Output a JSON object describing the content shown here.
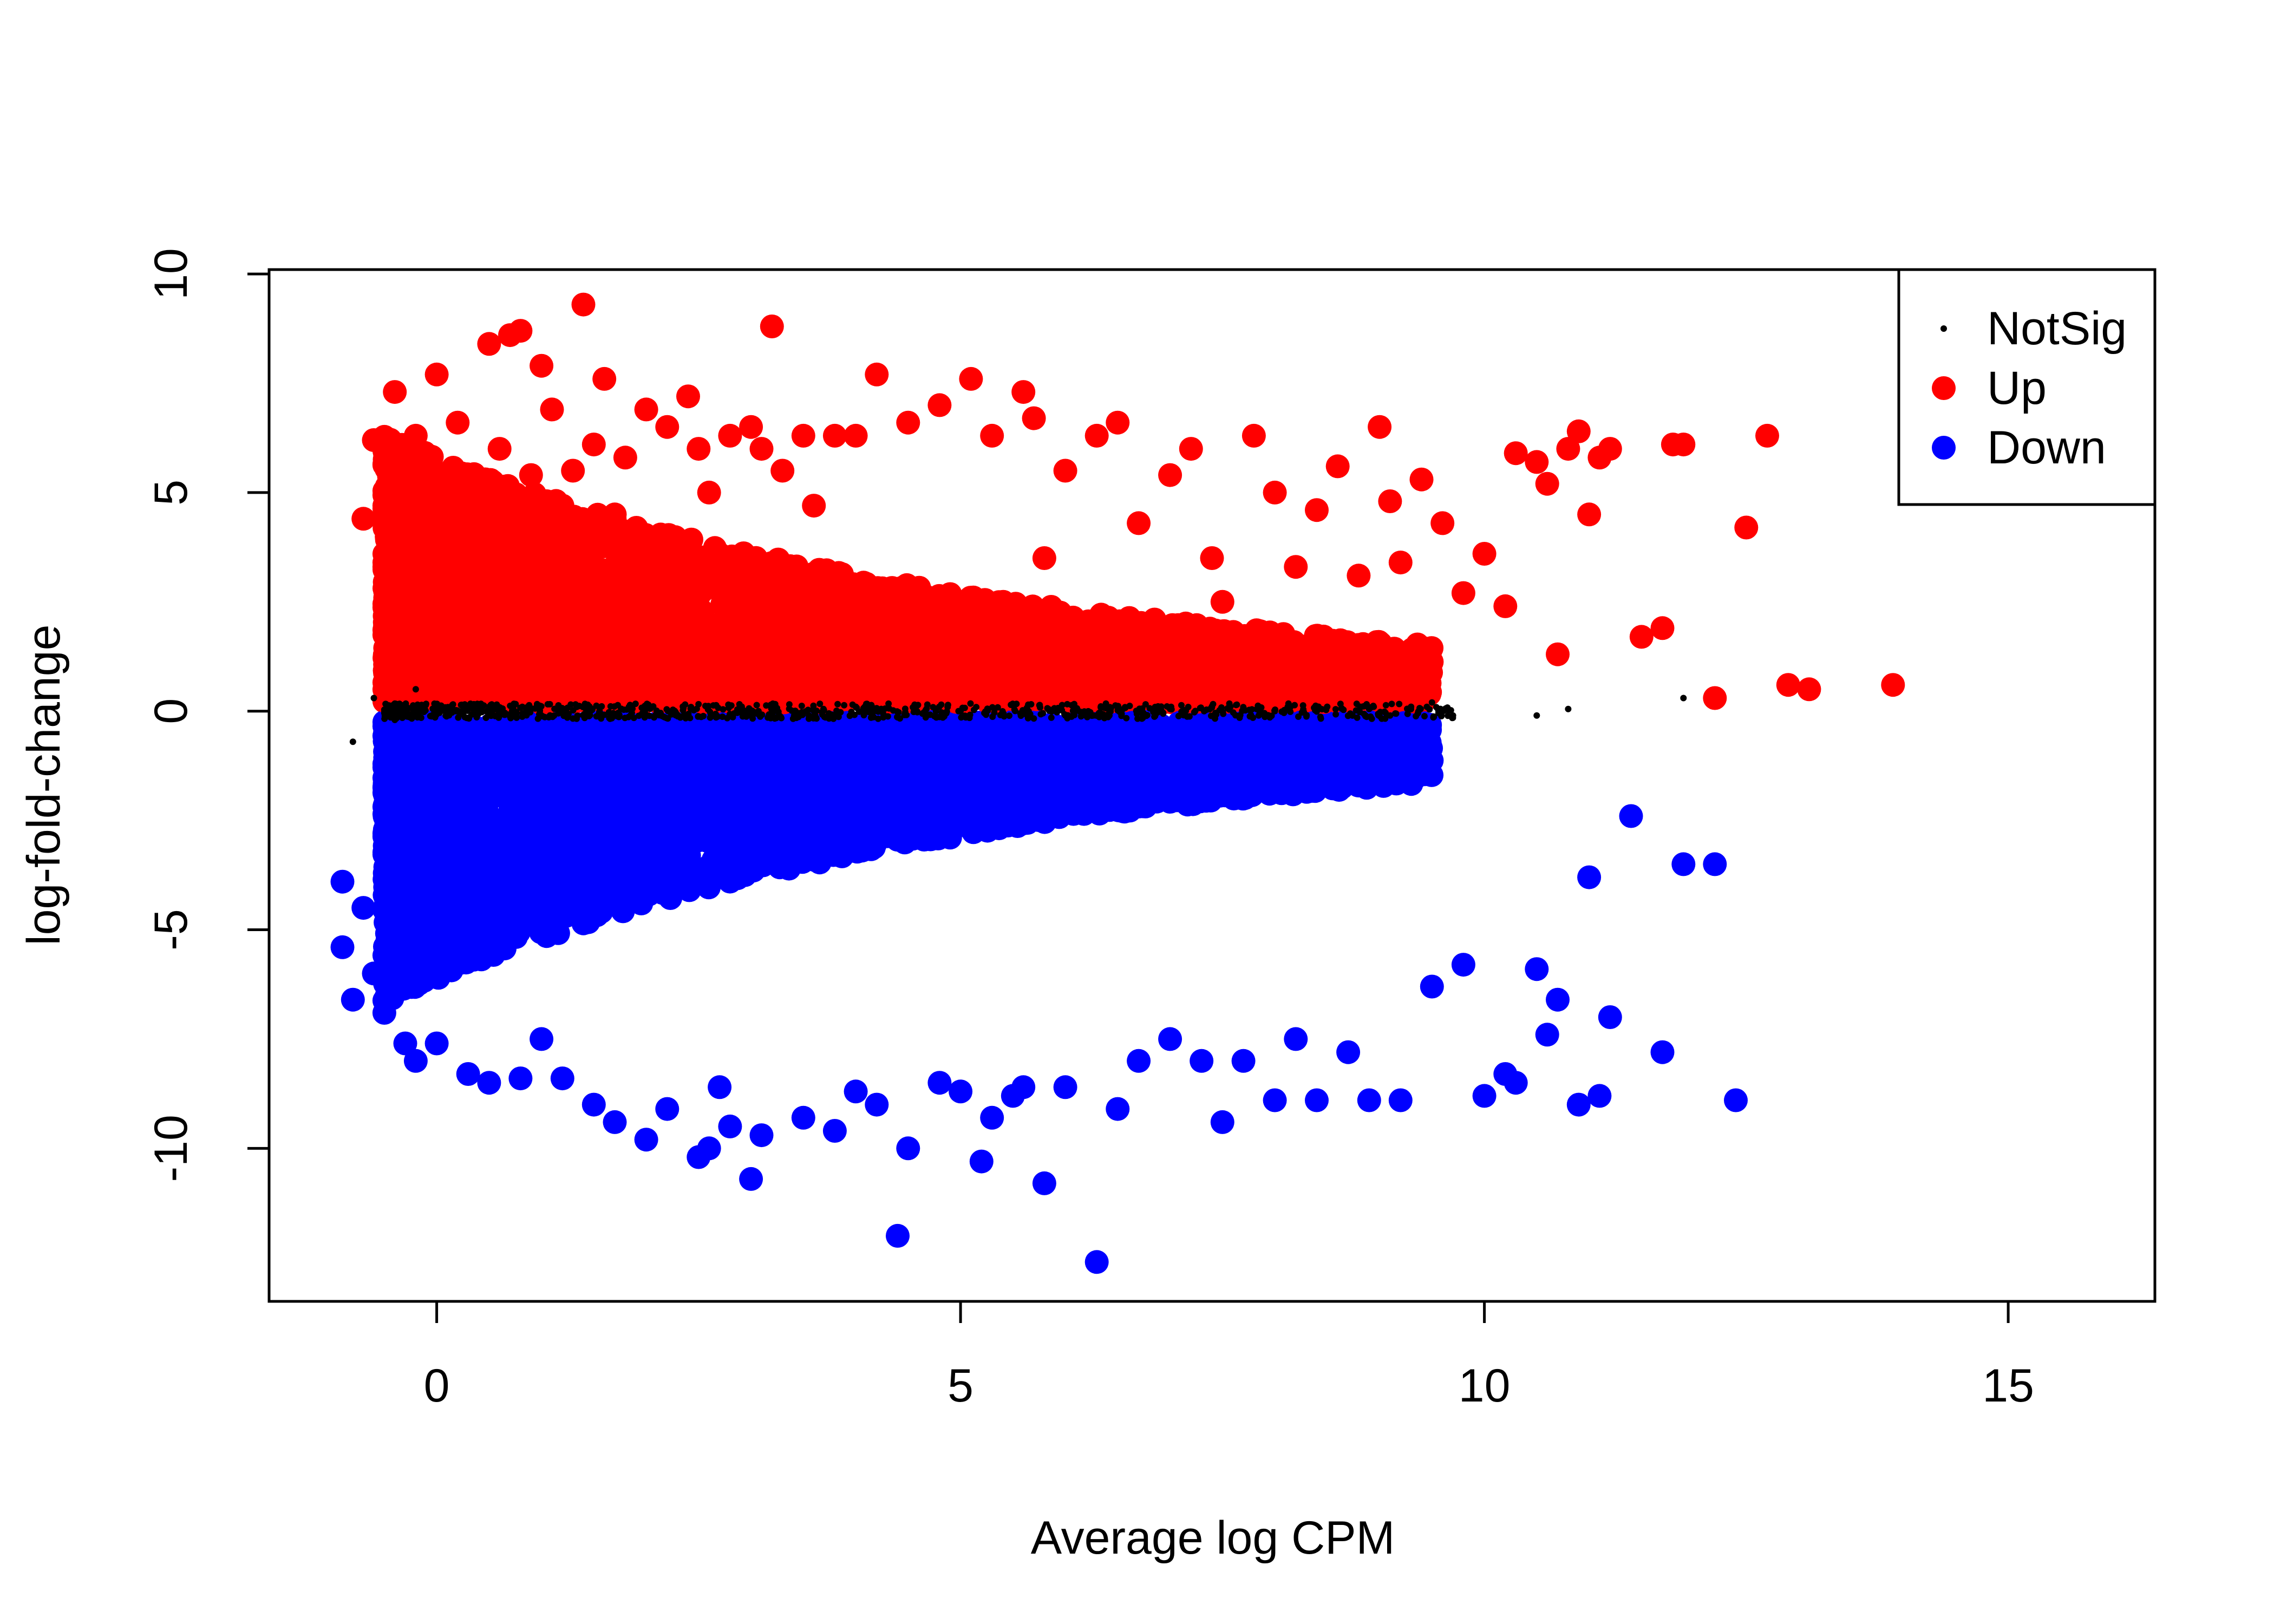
{
  "chart_data": {
    "type": "scatter",
    "title": "",
    "xlabel": "Average log CPM",
    "ylabel": "log-fold-change",
    "xlim": [
      -1.6,
      16.4
    ],
    "ylim": [
      -13.5,
      10.1
    ],
    "xticks": [
      0,
      5,
      10,
      15
    ],
    "yticks": [
      -10,
      -5,
      0,
      5,
      10
    ],
    "xtick_labels": [
      "0",
      "5",
      "10",
      "15"
    ],
    "ytick_labels": [
      "-10",
      "-5",
      "0",
      "5",
      "10"
    ],
    "grid": false,
    "legend_position": "top-right",
    "series": [
      {
        "name": "NotSig",
        "color": "#000000",
        "marker": "small-dot",
        "x": [
          -0.8,
          -0.6,
          -0.4,
          -0.2,
          0.0,
          0.5,
          1.0,
          2.0,
          3.0,
          4.0,
          5.0,
          6.0,
          7.0,
          8.0,
          8.5,
          8.9,
          9.1,
          9.3,
          9.5,
          9.7,
          10.5,
          10.8,
          11.9
        ],
        "y": [
          -0.7,
          0.3,
          -0.2,
          0.5,
          0.0,
          0.1,
          -0.1,
          0.05,
          -0.05,
          0.1,
          0.0,
          -0.1,
          0.05,
          0.0,
          0.1,
          0.05,
          -0.1,
          0.1,
          0.2,
          -0.1,
          -0.1,
          0.05,
          0.3
        ]
      },
      {
        "name": "Up",
        "color": "#ff0000",
        "marker": "dot",
        "x": [
          -0.7,
          -0.6,
          -0.5,
          -0.5,
          -0.4,
          -0.3,
          -0.2,
          -0.2,
          0.0,
          0.1,
          0.2,
          0.3,
          0.5,
          0.6,
          0.7,
          0.8,
          0.9,
          1.0,
          1.1,
          1.2,
          1.3,
          1.4,
          1.5,
          1.6,
          1.7,
          1.8,
          2.0,
          2.2,
          2.4,
          2.5,
          2.6,
          2.8,
          3.0,
          3.1,
          3.2,
          3.3,
          3.5,
          3.6,
          3.8,
          4.0,
          4.2,
          4.5,
          4.8,
          5.1,
          5.3,
          5.6,
          5.7,
          5.8,
          6.0,
          6.3,
          6.5,
          6.7,
          7.0,
          7.2,
          7.4,
          7.5,
          7.8,
          8.0,
          8.2,
          8.4,
          8.6,
          8.8,
          9.0,
          9.1,
          9.2,
          9.4,
          9.6,
          9.8,
          10.0,
          10.2,
          10.3,
          10.5,
          10.6,
          10.7,
          10.8,
          10.9,
          11.0,
          11.1,
          11.2,
          11.5,
          11.7,
          11.8,
          11.9,
          12.2,
          12.5,
          12.7,
          12.9,
          13.1,
          13.9
        ],
        "y": [
          4.4,
          6.2,
          4.7,
          3.4,
          7.3,
          5.7,
          4.3,
          6.3,
          7.7,
          5.0,
          6.6,
          4.2,
          8.4,
          6.0,
          8.6,
          8.7,
          5.4,
          7.9,
          6.9,
          4.7,
          5.5,
          9.3,
          6.1,
          7.6,
          4.5,
          5.8,
          6.9,
          6.5,
          7.2,
          6.0,
          5.0,
          6.3,
          6.5,
          6.0,
          8.8,
          5.5,
          6.3,
          4.7,
          6.3,
          6.3,
          7.7,
          6.6,
          7.0,
          7.6,
          6.3,
          7.3,
          6.7,
          3.5,
          5.5,
          6.3,
          6.6,
          4.3,
          5.4,
          6.0,
          3.5,
          2.5,
          6.3,
          5.0,
          3.3,
          4.6,
          5.6,
          3.1,
          6.5,
          4.8,
          3.4,
          5.3,
          4.3,
          2.7,
          3.6,
          2.4,
          5.9,
          5.7,
          5.2,
          1.3,
          6.0,
          6.4,
          4.5,
          5.8,
          6.0,
          1.7,
          1.9,
          6.1,
          6.1,
          0.3,
          4.2,
          6.3,
          0.6,
          0.5,
          0.6
        ]
      },
      {
        "name": "Down",
        "color": "#0000ff",
        "marker": "dot",
        "x": [
          -0.9,
          -0.9,
          -0.8,
          -0.7,
          -0.6,
          -0.5,
          -0.4,
          -0.3,
          -0.2,
          0.0,
          0.3,
          0.5,
          0.8,
          1.0,
          1.2,
          1.5,
          1.7,
          2.0,
          2.2,
          2.5,
          2.6,
          2.7,
          2.8,
          3.0,
          3.1,
          3.5,
          3.8,
          4.0,
          4.2,
          4.4,
          4.5,
          4.8,
          5.0,
          5.2,
          5.3,
          5.5,
          5.6,
          5.8,
          6.0,
          6.3,
          6.5,
          6.7,
          7.0,
          7.3,
          7.5,
          7.7,
          8.0,
          8.2,
          8.4,
          8.7,
          8.9,
          9.2,
          9.5,
          9.8,
          10.0,
          10.2,
          10.3,
          10.5,
          10.6,
          10.7,
          10.9,
          11.0,
          11.1,
          11.2,
          11.4,
          11.7,
          11.9,
          12.2,
          12.4
        ],
        "y": [
          -3.9,
          -5.4,
          -6.6,
          -4.5,
          -6.0,
          -6.9,
          -6.3,
          -7.6,
          -8.0,
          -7.6,
          -8.3,
          -8.5,
          -8.4,
          -7.5,
          -8.4,
          -9.0,
          -9.4,
          -9.8,
          -9.1,
          -10.2,
          -10.0,
          -8.6,
          -9.5,
          -10.7,
          -9.7,
          -9.3,
          -9.6,
          -8.7,
          -9.0,
          -12.0,
          -10.0,
          -8.5,
          -8.7,
          -10.3,
          -9.3,
          -8.8,
          -8.6,
          -10.8,
          -8.6,
          -12.6,
          -9.1,
          -8.0,
          -7.5,
          -8.0,
          -9.4,
          -8.0,
          -8.9,
          -7.5,
          -8.9,
          -7.8,
          -8.9,
          -8.9,
          -6.3,
          -5.8,
          -8.8,
          -8.3,
          -8.5,
          -5.9,
          -7.4,
          -6.6,
          -9.0,
          -3.8,
          -8.8,
          -7.0,
          -2.4,
          -7.8,
          -3.5,
          -3.5,
          -8.9
        ]
      }
    ]
  }
}
